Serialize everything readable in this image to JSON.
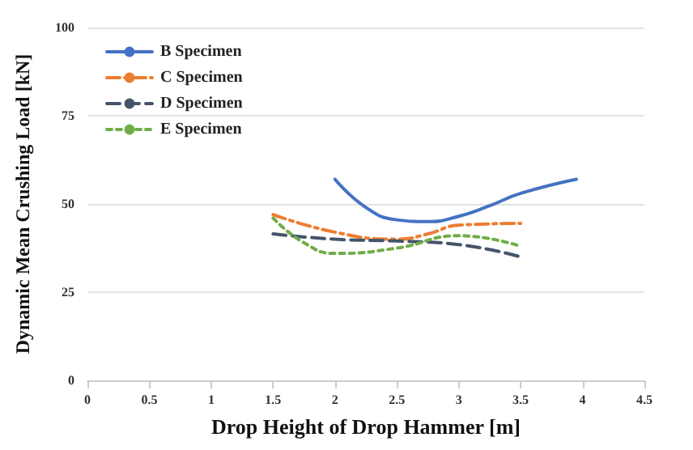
{
  "chart_data": {
    "type": "line",
    "xlabel": "Drop Height of Drop Hammer [m]",
    "ylabel": "Dynamic Mean Crushing Load [kN]",
    "xlim": [
      0,
      4.5
    ],
    "xticks": [
      0,
      0.5,
      1,
      1.5,
      2,
      2.5,
      3,
      3.5,
      4,
      4.5
    ],
    "ylim": [
      0,
      100
    ],
    "yticks": [
      0,
      25,
      50,
      75,
      100
    ],
    "grid": "y",
    "legend": "top left",
    "marker": "none",
    "series": [
      {
        "name": "B Specimen",
        "color": "#4472c4",
        "line_style": "solid",
        "x": [
          2,
          2.25,
          2.5,
          2.75,
          3,
          3.25,
          3.5,
          3.95
        ],
        "values": [
          57,
          49,
          45.5,
          45,
          46.5,
          49.5,
          53,
          57
        ]
      },
      {
        "name": "C Specimen",
        "color": "#ed7d31",
        "line_style": "dashdot",
        "x": [
          1.5,
          2,
          2.5,
          2.75,
          3,
          3.5
        ],
        "values": [
          47,
          42,
          40,
          41.5,
          44,
          44.5
        ]
      },
      {
        "name": "D Specimen",
        "color": "#44546a",
        "line_style": "dashed",
        "x": [
          1.5,
          2,
          2.5,
          3,
          3.5
        ],
        "values": [
          41.5,
          40,
          39.5,
          38.5,
          35
        ]
      },
      {
        "name": "E Specimen",
        "color": "#70ad47",
        "line_style": "dotted",
        "x": [
          1.5,
          1.75,
          2,
          2.5,
          3,
          3.5
        ],
        "values": [
          46,
          39,
          36,
          37.5,
          41,
          38
        ]
      }
    ]
  }
}
